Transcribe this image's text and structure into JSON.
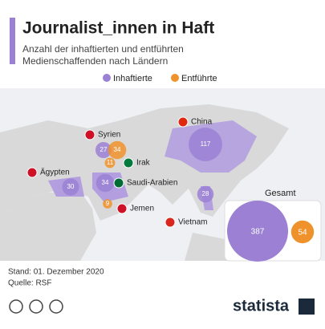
{
  "header": {
    "title": "Journalist_innen in Haft",
    "subtitle": [
      "Anzahl der inhaftierten und entführten",
      "Medienschaffenden nach Ländern"
    ]
  },
  "legend": {
    "detained": {
      "label": "Inhaftierte",
      "color": "#9b80d3"
    },
    "kidnapped": {
      "label": "Entführte",
      "color": "#f0922b"
    }
  },
  "countries": [
    {
      "name": "China",
      "detained": 117,
      "kidnapped": null
    },
    {
      "name": "Syrien",
      "detained": 27,
      "kidnapped": 34
    },
    {
      "name": "Irak",
      "detained": null,
      "kidnapped": 11
    },
    {
      "name": "Ägypten",
      "detained": 30,
      "kidnapped": null
    },
    {
      "name": "Saudi-Arabien",
      "detained": 34,
      "kidnapped": null
    },
    {
      "name": "Jemen",
      "detained": null,
      "kidnapped": 9
    },
    {
      "name": "Vietnam",
      "detained": 28,
      "kidnapped": null
    }
  ],
  "total": {
    "label": "Gesamt",
    "detained": 387,
    "kidnapped": 54
  },
  "footer": {
    "date": "Stand: 01. Dezember 2020",
    "source": "Quelle: RSF",
    "brand": "statista"
  }
}
